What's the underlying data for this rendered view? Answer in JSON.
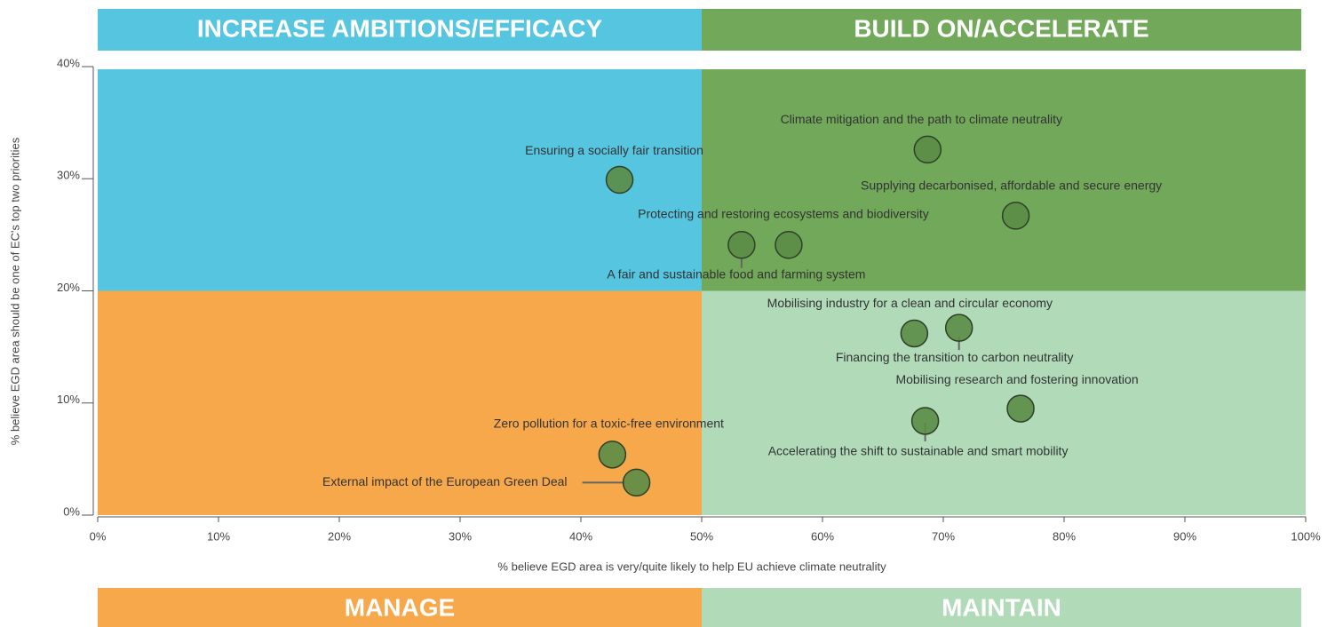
{
  "chart_data": {
    "type": "scatter",
    "xlabel": "% believe EGD area is very/quite likely to help EU achieve climate neutrality",
    "ylabel": "% believe EGD area should be one of EC's top two priorities",
    "xlim": [
      0,
      100
    ],
    "ylim": [
      0,
      40
    ],
    "xticks": [
      {
        "value": 0,
        "label": "0%"
      },
      {
        "value": 10,
        "label": "10%"
      },
      {
        "value": 20,
        "label": "20%"
      },
      {
        "value": 30,
        "label": "30%"
      },
      {
        "value": 40,
        "label": "40%"
      },
      {
        "value": 50,
        "label": "50%"
      },
      {
        "value": 60,
        "label": "60%"
      },
      {
        "value": 70,
        "label": "70%"
      },
      {
        "value": 80,
        "label": "80%"
      },
      {
        "value": 90,
        "label": "90%"
      },
      {
        "value": 100,
        "label": "100%"
      }
    ],
    "yticks": [
      {
        "value": 0,
        "label": "0%"
      },
      {
        "value": 10,
        "label": "10%"
      },
      {
        "value": 20,
        "label": "20%"
      },
      {
        "value": 30,
        "label": "30%"
      },
      {
        "value": 40,
        "label": "40%"
      }
    ],
    "quadrant_split": {
      "x": 50,
      "y": 20
    },
    "quadrants": {
      "top_left": {
        "name": "INCREASE AMBITIONS/EFFICACY",
        "color": "#56c5e0"
      },
      "top_right": {
        "name": "BUILD ON/ACCELERATE",
        "color": "#72a85a"
      },
      "bottom_left": {
        "name": "MANAGE",
        "color": "#f7a84a"
      },
      "bottom_right": {
        "name": "MAINTAIN",
        "color": "#b0dab8"
      }
    },
    "color": "#5b8c46",
    "points": [
      {
        "label": "Climate mitigation and the path to climate neutrality",
        "x": 68.7,
        "y": 32.6
      },
      {
        "label": "Ensuring a socially fair transition",
        "x": 43.2,
        "y": 29.9
      },
      {
        "label": "Supplying decarbonised, affordable and secure energy",
        "x": 76.0,
        "y": 26.7
      },
      {
        "label": "Protecting and restoring ecosystems and biodiversity",
        "x": 57.2,
        "y": 24.1
      },
      {
        "label": "A fair and sustainable food and farming system",
        "x": 53.3,
        "y": 24.1
      },
      {
        "label": "Mobilising industry for a clean and circular economy",
        "x": 67.6,
        "y": 16.2
      },
      {
        "label": "Financing the transition to carbon neutrality",
        "x": 71.3,
        "y": 16.7
      },
      {
        "label": "Mobilising research and fostering innovation",
        "x": 76.4,
        "y": 9.5
      },
      {
        "label": "Accelerating the shift to sustainable and smart mobility",
        "x": 68.5,
        "y": 8.4
      },
      {
        "label": "Zero pollution for a toxic-free environment",
        "x": 42.6,
        "y": 5.4
      },
      {
        "label": "External impact of the European Green Deal",
        "x": 44.6,
        "y": 2.9
      }
    ]
  }
}
